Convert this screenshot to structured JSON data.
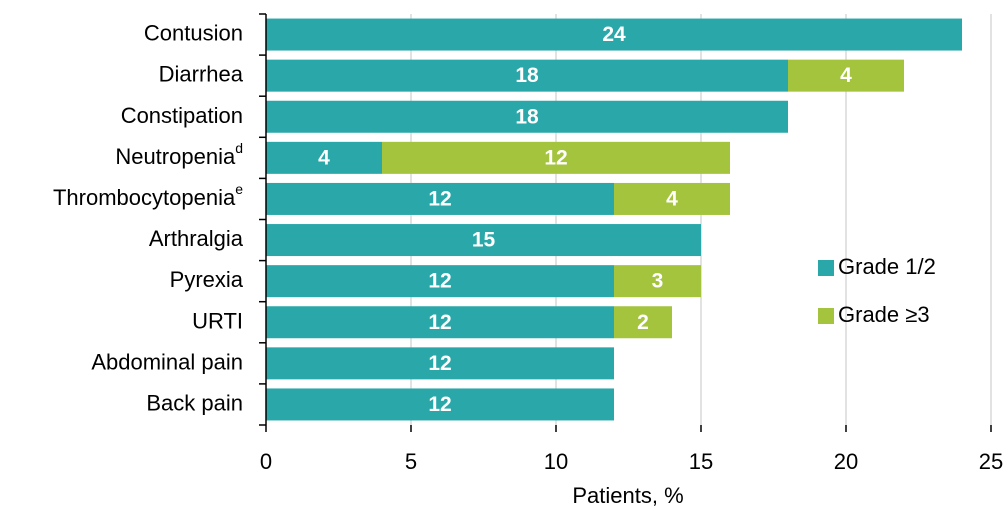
{
  "chart_data": {
    "type": "stacked-barh",
    "categories": [
      "Contusion",
      "Diarrhea",
      "Constipation",
      "Neutropenia",
      "Thrombocytopenia",
      "Arthralgia",
      "Pyrexia",
      "URTI",
      "Abdominal pain",
      "Back pain"
    ],
    "category_superscripts": [
      null,
      null,
      null,
      "d",
      "e",
      null,
      null,
      null,
      null,
      null
    ],
    "series": [
      {
        "name": "Grade 1/2",
        "color": "#2aa7a9",
        "values": [
          24,
          18,
          18,
          4,
          12,
          15,
          12,
          12,
          12,
          12
        ]
      },
      {
        "name": "Grade ≥3",
        "color": "#a4c43d",
        "values": [
          null,
          4,
          null,
          12,
          4,
          null,
          3,
          2,
          null,
          null
        ]
      }
    ],
    "x_label": "Patients, %",
    "xlim": [
      0,
      25
    ],
    "xticks": [
      0,
      5,
      10,
      15,
      20,
      25
    ],
    "grid": true,
    "legend": "right"
  }
}
